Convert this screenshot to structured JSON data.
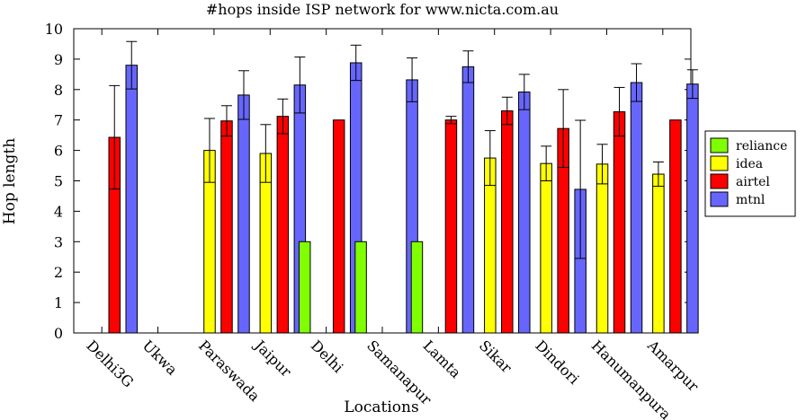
{
  "chart_data": {
    "type": "bar",
    "title": "#hops inside ISP network for www.nicta.com.au",
    "xlabel": "Locations",
    "ylabel": "Hop length",
    "ylim": [
      0,
      10
    ],
    "yticks": [
      0,
      1,
      2,
      3,
      4,
      5,
      6,
      7,
      8,
      9,
      10
    ],
    "categories": [
      "Delhi3G",
      "Ukwa",
      "Paraswada",
      "Jaipur",
      "Delhi",
      "Samanapur",
      "Lamta",
      "Sikar",
      "Dindori",
      "Hanumanpura",
      "Amarpur"
    ],
    "series": [
      {
        "name": "reliance",
        "color": "#7fff00",
        "values": [
          null,
          null,
          null,
          null,
          3.0,
          3.0,
          3.0,
          null,
          null,
          null,
          null
        ],
        "err": [
          null,
          null,
          null,
          null,
          0,
          0,
          0,
          null,
          null,
          null,
          null
        ]
      },
      {
        "name": "idea",
        "color": "#ffff00",
        "values": [
          null,
          null,
          6.0,
          5.9,
          null,
          null,
          null,
          5.75,
          5.57,
          5.55,
          5.22
        ],
        "err": [
          null,
          null,
          1.05,
          0.95,
          null,
          null,
          null,
          0.9,
          0.57,
          0.65,
          0.4
        ]
      },
      {
        "name": "airtel",
        "color": "#ff0000",
        "values": [
          6.43,
          null,
          6.97,
          7.12,
          7.0,
          null,
          7.0,
          7.3,
          6.72,
          7.27,
          7.0
        ],
        "err": [
          1.7,
          null,
          0.5,
          0.57,
          0,
          null,
          0.12,
          0.45,
          1.28,
          0.8,
          0
        ]
      },
      {
        "name": "mtnl",
        "color": "#6666ff",
        "values": [
          8.8,
          null,
          7.82,
          8.15,
          8.88,
          8.32,
          8.75,
          7.92,
          4.72,
          8.23,
          8.18
        ],
        "err": [
          0.78,
          null,
          0.8,
          0.92,
          0.58,
          0.72,
          0.52,
          0.58,
          2.27,
          0.62,
          0.47
        ]
      }
    ],
    "legend_position": "right"
  }
}
